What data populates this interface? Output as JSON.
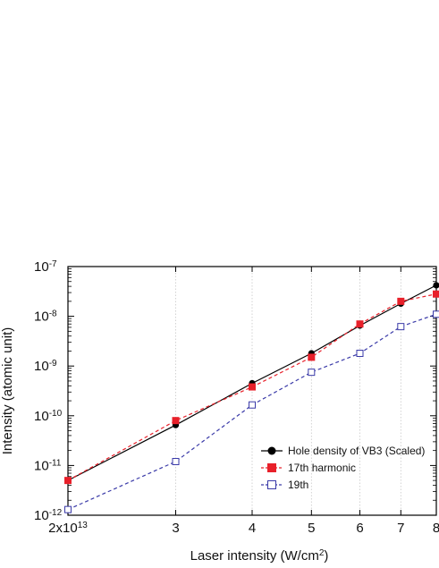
{
  "chart_data": {
    "type": "line",
    "xlabel": "Laser intensity (W/cm",
    "xlabel_sup": "2",
    "xlabel_close": ")",
    "ylabel": "Intensity (atomic unit)",
    "x_scale": "log",
    "y_scale": "log",
    "xlim": [
      20000000000000.0,
      80000000000000.0
    ],
    "ylim": [
      1e-12,
      1e-07
    ],
    "grid": "vertical dotted",
    "legend_position": "bottom-right",
    "x_ticks": [
      {
        "value": 20000000000000.0,
        "label_base": "2x10",
        "label_exp": "13"
      },
      {
        "value": 30000000000000.0,
        "label_base": "3",
        "label_exp": ""
      },
      {
        "value": 40000000000000.0,
        "label_base": "4",
        "label_exp": ""
      },
      {
        "value": 50000000000000.0,
        "label_base": "5",
        "label_exp": ""
      },
      {
        "value": 60000000000000.0,
        "label_base": "6",
        "label_exp": ""
      },
      {
        "value": 70000000000000.0,
        "label_base": "7",
        "label_exp": ""
      },
      {
        "value": 80000000000000.0,
        "label_base": "8",
        "label_exp": ""
      }
    ],
    "y_ticks": [
      {
        "value": 1e-07,
        "label_base": "10",
        "label_exp": "-7"
      },
      {
        "value": 1e-08,
        "label_base": "10",
        "label_exp": "-8"
      },
      {
        "value": 1e-09,
        "label_base": "10",
        "label_exp": "-9"
      },
      {
        "value": 1e-10,
        "label_base": "10",
        "label_exp": "-10"
      },
      {
        "value": 1e-11,
        "label_base": "10",
        "label_exp": "-11"
      },
      {
        "value": 1e-12,
        "label_base": "10",
        "label_exp": "-12"
      }
    ],
    "series": [
      {
        "name": "Hole density of VB3 (Scaled)",
        "color": "#000000",
        "line": "solid",
        "marker": "filled-circle",
        "x": [
          20000000000000.0,
          30000000000000.0,
          40000000000000.0,
          50000000000000.0,
          60000000000000.0,
          70000000000000.0,
          80000000000000.0
        ],
        "y": [
          5e-12,
          6.5e-11,
          4.5e-10,
          1.8e-09,
          6.5e-09,
          1.8e-08,
          4.2e-08
        ]
      },
      {
        "name": "17th harmonic",
        "color": "#e8202a",
        "line": "dashed",
        "marker": "filled-square",
        "x": [
          20000000000000.0,
          30000000000000.0,
          40000000000000.0,
          50000000000000.0,
          60000000000000.0,
          70000000000000.0,
          80000000000000.0
        ],
        "y": [
          5e-12,
          8e-11,
          3.8e-10,
          1.5e-09,
          7e-09,
          2e-08,
          2.8e-08
        ]
      },
      {
        "name": "19th",
        "color": "#3a3aa8",
        "line": "dashed",
        "marker": "open-square",
        "x": [
          20000000000000.0,
          30000000000000.0,
          40000000000000.0,
          50000000000000.0,
          60000000000000.0,
          70000000000000.0,
          80000000000000.0
        ],
        "y": [
          1.3e-12,
          1.2e-11,
          1.65e-10,
          7.5e-10,
          1.8e-09,
          6.2e-09,
          1.1e-08
        ]
      }
    ]
  }
}
